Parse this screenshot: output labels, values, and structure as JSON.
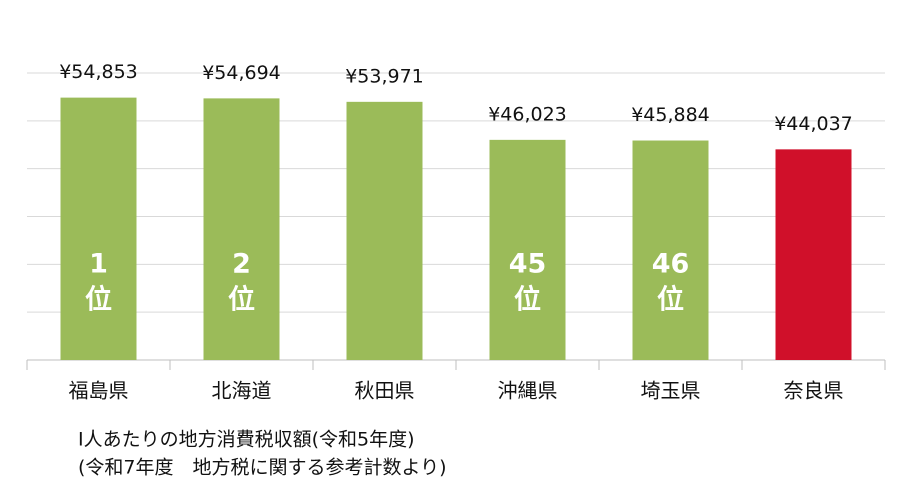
{
  "chart_data": {
    "type": "bar",
    "categories": [
      "福島県",
      "北海道",
      "秋田県",
      "沖縄県",
      "埼玉県",
      "奈良県"
    ],
    "values": [
      54853,
      54694,
      53971,
      46023,
      45884,
      44037
    ],
    "value_labels": [
      "¥54,853",
      "¥54,694",
      "¥53,971",
      "¥46,023",
      "¥45,884",
      "¥44,037"
    ],
    "colors": [
      "#9bbb59",
      "#9bbb59",
      "#9bbb59",
      "#9bbb59",
      "#9bbb59",
      "#d0102a"
    ],
    "rank_labels": [
      "1",
      "2",
      null,
      "45",
      "46",
      null
    ],
    "rank_suffix": "位",
    "ylim": [
      0,
      60000
    ],
    "yticks": [
      0,
      10000,
      20000,
      30000,
      40000,
      50000,
      60000
    ],
    "grid": true,
    "notes": [
      "I人あたりの地方消費税収額(令和5年度)",
      "(令和7年度　地方税に関する参考計数より)"
    ]
  }
}
